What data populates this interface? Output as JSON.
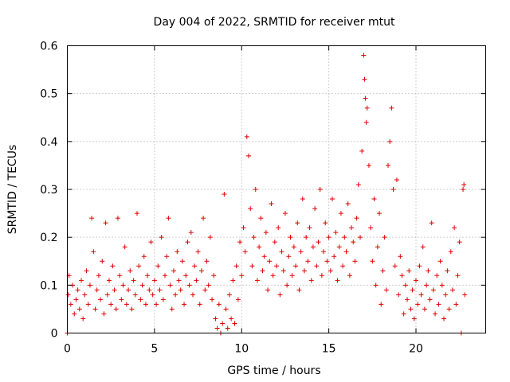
{
  "chart_data": {
    "type": "scatter",
    "title": "Day 004 of 2022, SRMTID for receiver mtut",
    "xlabel": "GPS time / hours",
    "ylabel": "SRMTID / TECUs",
    "xlim": [
      0,
      24
    ],
    "ylim": [
      0,
      0.6
    ],
    "x_ticks": [
      0,
      5,
      10,
      15,
      20
    ],
    "y_ticks": [
      0,
      0.1,
      0.2,
      0.3,
      0.4,
      0.5,
      0.6
    ],
    "x_tick_labels": [
      "0",
      "5",
      "10",
      "15",
      "20"
    ],
    "y_tick_labels": [
      "0",
      "0.1",
      "0.2",
      "0.3",
      "0.4",
      "0.5",
      "0.6"
    ],
    "grid": true,
    "marker": "+",
    "marker_color": "#e00000",
    "series": [
      {
        "name": "SRMTID",
        "points": [
          [
            0.0,
            0.0
          ],
          [
            0.05,
            0.08
          ],
          [
            0.1,
            0.12
          ],
          [
            0.2,
            0.06
          ],
          [
            0.3,
            0.1
          ],
          [
            0.4,
            0.04
          ],
          [
            0.5,
            0.07
          ],
          [
            0.6,
            0.09
          ],
          [
            0.7,
            0.05
          ],
          [
            0.8,
            0.11
          ],
          [
            0.9,
            0.03
          ],
          [
            1.0,
            0.08
          ],
          [
            1.1,
            0.13
          ],
          [
            1.2,
            0.06
          ],
          [
            1.3,
            0.1
          ],
          [
            1.4,
            0.24
          ],
          [
            1.5,
            0.17
          ],
          [
            1.6,
            0.05
          ],
          [
            1.7,
            0.09
          ],
          [
            1.8,
            0.12
          ],
          [
            1.9,
            0.07
          ],
          [
            2.0,
            0.15
          ],
          [
            2.1,
            0.04
          ],
          [
            2.2,
            0.23
          ],
          [
            2.3,
            0.08
          ],
          [
            2.4,
            0.11
          ],
          [
            2.5,
            0.06
          ],
          [
            2.6,
            0.14
          ],
          [
            2.7,
            0.09
          ],
          [
            2.8,
            0.05
          ],
          [
            2.9,
            0.24
          ],
          [
            3.0,
            0.12
          ],
          [
            3.1,
            0.07
          ],
          [
            3.2,
            0.1
          ],
          [
            3.3,
            0.18
          ],
          [
            3.4,
            0.06
          ],
          [
            3.5,
            0.09
          ],
          [
            3.6,
            0.13
          ],
          [
            3.7,
            0.05
          ],
          [
            3.8,
            0.11
          ],
          [
            3.9,
            0.08
          ],
          [
            4.0,
            0.25
          ],
          [
            4.1,
            0.14
          ],
          [
            4.2,
            0.07
          ],
          [
            4.3,
            0.1
          ],
          [
            4.4,
            0.16
          ],
          [
            4.5,
            0.06
          ],
          [
            4.6,
            0.12
          ],
          [
            4.7,
            0.09
          ],
          [
            4.8,
            0.19
          ],
          [
            4.9,
            0.08
          ],
          [
            5.0,
            0.11
          ],
          [
            5.1,
            0.06
          ],
          [
            5.2,
            0.14
          ],
          [
            5.3,
            0.09
          ],
          [
            5.4,
            0.2
          ],
          [
            5.5,
            0.07
          ],
          [
            5.6,
            0.12
          ],
          [
            5.7,
            0.16
          ],
          [
            5.8,
            0.24
          ],
          [
            5.9,
            0.1
          ],
          [
            6.0,
            0.05
          ],
          [
            6.1,
            0.13
          ],
          [
            6.2,
            0.08
          ],
          [
            6.3,
            0.17
          ],
          [
            6.4,
            0.11
          ],
          [
            6.5,
            0.09
          ],
          [
            6.6,
            0.15
          ],
          [
            6.7,
            0.06
          ],
          [
            6.8,
            0.12
          ],
          [
            6.9,
            0.19
          ],
          [
            7.0,
            0.1
          ],
          [
            7.1,
            0.21
          ],
          [
            7.2,
            0.08
          ],
          [
            7.3,
            0.14
          ],
          [
            7.4,
            0.11
          ],
          [
            7.5,
            0.17
          ],
          [
            7.6,
            0.06
          ],
          [
            7.7,
            0.13
          ],
          [
            7.8,
            0.24
          ],
          [
            7.9,
            0.09
          ],
          [
            8.0,
            0.15
          ],
          [
            8.1,
            0.1
          ],
          [
            8.2,
            0.2
          ],
          [
            8.3,
            0.07
          ],
          [
            8.4,
            0.12
          ],
          [
            8.5,
            0.03
          ],
          [
            8.6,
            0.01
          ],
          [
            8.7,
            0.06
          ],
          [
            8.8,
            0.0
          ],
          [
            8.9,
            0.02
          ],
          [
            9.0,
            0.29
          ],
          [
            9.1,
            0.05
          ],
          [
            9.2,
            0.01
          ],
          [
            9.3,
            0.08
          ],
          [
            9.4,
            0.03
          ],
          [
            9.5,
            0.11
          ],
          [
            9.6,
            0.02
          ],
          [
            9.7,
            0.14
          ],
          [
            9.8,
            0.07
          ],
          [
            9.9,
            0.19
          ],
          [
            10.0,
            0.12
          ],
          [
            10.1,
            0.22
          ],
          [
            10.2,
            0.17
          ],
          [
            10.3,
            0.41
          ],
          [
            10.4,
            0.37
          ],
          [
            10.5,
            0.26
          ],
          [
            10.6,
            0.14
          ],
          [
            10.7,
            0.2
          ],
          [
            10.8,
            0.3
          ],
          [
            10.9,
            0.11
          ],
          [
            11.0,
            0.18
          ],
          [
            11.1,
            0.24
          ],
          [
            11.2,
            0.13
          ],
          [
            11.3,
            0.16
          ],
          [
            11.4,
            0.21
          ],
          [
            11.5,
            0.09
          ],
          [
            11.6,
            0.15
          ],
          [
            11.7,
            0.27
          ],
          [
            11.8,
            0.12
          ],
          [
            11.9,
            0.19
          ],
          [
            12.0,
            0.14
          ],
          [
            12.1,
            0.22
          ],
          [
            12.2,
            0.08
          ],
          [
            12.3,
            0.17
          ],
          [
            12.4,
            0.13
          ],
          [
            12.5,
            0.25
          ],
          [
            12.6,
            0.1
          ],
          [
            12.7,
            0.16
          ],
          [
            12.8,
            0.2
          ],
          [
            12.9,
            0.12
          ],
          [
            13.0,
            0.18
          ],
          [
            13.1,
            0.14
          ],
          [
            13.2,
            0.23
          ],
          [
            13.3,
            0.09
          ],
          [
            13.4,
            0.17
          ],
          [
            13.5,
            0.28
          ],
          [
            13.6,
            0.13
          ],
          [
            13.7,
            0.2
          ],
          [
            13.8,
            0.15
          ],
          [
            13.9,
            0.22
          ],
          [
            14.0,
            0.11
          ],
          [
            14.1,
            0.18
          ],
          [
            14.2,
            0.26
          ],
          [
            14.3,
            0.14
          ],
          [
            14.4,
            0.19
          ],
          [
            14.5,
            0.3
          ],
          [
            14.6,
            0.12
          ],
          [
            14.7,
            0.17
          ],
          [
            14.8,
            0.23
          ],
          [
            14.9,
            0.15
          ],
          [
            15.0,
            0.2
          ],
          [
            15.1,
            0.13
          ],
          [
            15.2,
            0.28
          ],
          [
            15.3,
            0.16
          ],
          [
            15.4,
            0.21
          ],
          [
            15.5,
            0.11
          ],
          [
            15.6,
            0.18
          ],
          [
            15.7,
            0.25
          ],
          [
            15.8,
            0.14
          ],
          [
            15.9,
            0.2
          ],
          [
            16.0,
            0.17
          ],
          [
            16.1,
            0.27
          ],
          [
            16.2,
            0.12
          ],
          [
            16.3,
            0.22
          ],
          [
            16.4,
            0.19
          ],
          [
            16.5,
            0.15
          ],
          [
            16.6,
            0.24
          ],
          [
            16.7,
            0.31
          ],
          [
            16.8,
            0.2
          ],
          [
            16.9,
            0.38
          ],
          [
            17.0,
            0.58
          ],
          [
            17.05,
            0.53
          ],
          [
            17.1,
            0.49
          ],
          [
            17.15,
            0.44
          ],
          [
            17.2,
            0.47
          ],
          [
            17.3,
            0.35
          ],
          [
            17.4,
            0.22
          ],
          [
            17.5,
            0.15
          ],
          [
            17.6,
            0.28
          ],
          [
            17.7,
            0.1
          ],
          [
            17.8,
            0.18
          ],
          [
            17.9,
            0.25
          ],
          [
            18.0,
            0.06
          ],
          [
            18.1,
            0.13
          ],
          [
            18.2,
            0.2
          ],
          [
            18.3,
            0.09
          ],
          [
            18.4,
            0.35
          ],
          [
            18.5,
            0.4
          ],
          [
            18.6,
            0.47
          ],
          [
            18.7,
            0.3
          ],
          [
            18.8,
            0.14
          ],
          [
            18.9,
            0.32
          ],
          [
            19.0,
            0.08
          ],
          [
            19.1,
            0.16
          ],
          [
            19.2,
            0.12
          ],
          [
            19.3,
            0.04
          ],
          [
            19.4,
            0.1
          ],
          [
            19.5,
            0.07
          ],
          [
            19.6,
            0.13
          ],
          [
            19.7,
            0.05
          ],
          [
            19.8,
            0.09
          ],
          [
            19.9,
            0.03
          ],
          [
            20.0,
            0.11
          ],
          [
            20.1,
            0.06
          ],
          [
            20.2,
            0.14
          ],
          [
            20.3,
            0.08
          ],
          [
            20.4,
            0.18
          ],
          [
            20.5,
            0.05
          ],
          [
            20.6,
            0.1
          ],
          [
            20.7,
            0.13
          ],
          [
            20.8,
            0.07
          ],
          [
            20.9,
            0.23
          ],
          [
            21.0,
            0.09
          ],
          [
            21.1,
            0.04
          ],
          [
            21.2,
            0.12
          ],
          [
            21.3,
            0.06
          ],
          [
            21.4,
            0.15
          ],
          [
            21.5,
            0.1
          ],
          [
            21.6,
            0.03
          ],
          [
            21.7,
            0.08
          ],
          [
            21.8,
            0.13
          ],
          [
            21.9,
            0.05
          ],
          [
            22.0,
            0.17
          ],
          [
            22.1,
            0.09
          ],
          [
            22.2,
            0.22
          ],
          [
            22.3,
            0.06
          ],
          [
            22.4,
            0.12
          ],
          [
            22.5,
            0.19
          ],
          [
            22.6,
            0.0
          ],
          [
            22.7,
            0.3
          ],
          [
            22.75,
            0.31
          ],
          [
            22.8,
            0.08
          ]
        ]
      }
    ]
  }
}
